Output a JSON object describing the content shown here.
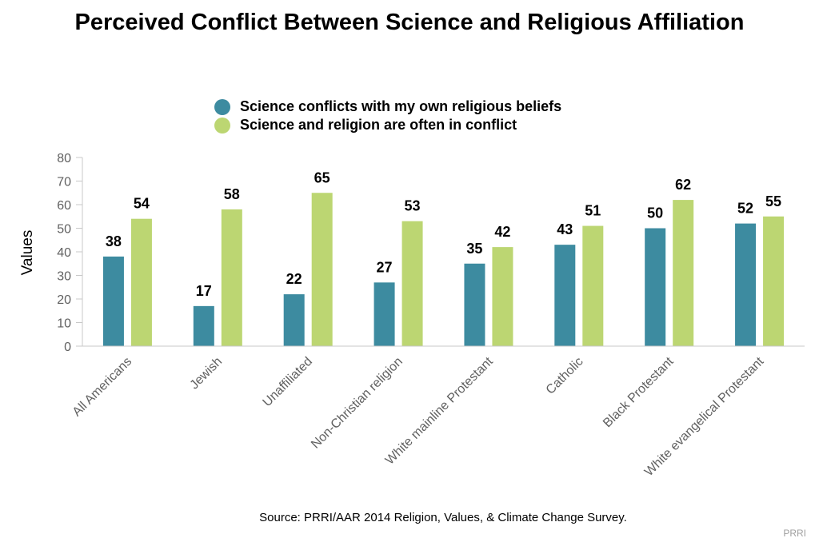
{
  "chart_data": {
    "type": "bar",
    "title": "Perceived Conflict Between Science and Religious Affiliation",
    "ylabel": "Values",
    "xlabel": "",
    "ylim": [
      0,
      80
    ],
    "yticks": [
      0,
      10,
      20,
      30,
      40,
      50,
      60,
      70,
      80
    ],
    "grid": false,
    "legend_position": "top",
    "categories": [
      "All Americans",
      "Jewish",
      "Unaffiliated",
      "Non-Christian religion",
      "White mainline Protestant",
      "Catholic",
      "Black Protestant",
      "White evangelical Protestant"
    ],
    "series": [
      {
        "name": "Science conflicts with my own religious beliefs",
        "color": "#3d8ba0",
        "values": [
          38,
          17,
          22,
          27,
          35,
          43,
          50,
          52
        ]
      },
      {
        "name": "Science and religion are often in conflict",
        "color": "#bcd672",
        "values": [
          54,
          58,
          65,
          53,
          42,
          51,
          62,
          55
        ]
      }
    ]
  },
  "source": "Source: PRRI/AAR 2014 Religion, Values, & Climate Change Survey.",
  "brand": "PRRI"
}
